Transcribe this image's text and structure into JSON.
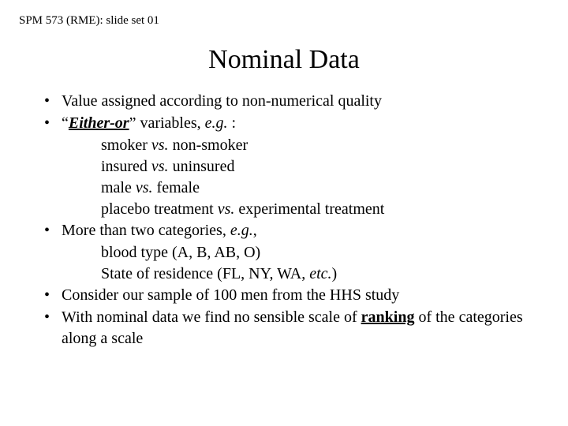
{
  "header": "SPM 573 (RME): slide set 01",
  "title": "Nominal Data",
  "b1": "Value assigned according to non-numerical quality",
  "b2a": "“",
  "b2b": "Either-or",
  "b2c": "” variables, ",
  "b2d": "e.g.",
  "b2e": " :",
  "s1a": "smoker ",
  "s1b": "vs.",
  "s1c": " non-smoker",
  "s2a": "insured ",
  "s2b": "vs.",
  "s2c": " uninsured",
  "s3a": "male ",
  "s3b": "vs.",
  "s3c": " female",
  "s4a": "placebo treatment ",
  "s4b": "vs.",
  "s4c": " experimental treatment",
  "b3a": "More than two categories, ",
  "b3b": "e.g.",
  "b3c": ",",
  "s5": "blood type (A, B, AB, O)",
  "s6a": "State of residence (FL, NY, WA, ",
  "s6b": "etc.",
  "s6c": ")",
  "b4": "Consider our sample of 100 men from the HHS study",
  "b5a": "With nominal data we find no sensible scale of ",
  "b5b": "ranking",
  "b5c": " of the categories along a scale"
}
